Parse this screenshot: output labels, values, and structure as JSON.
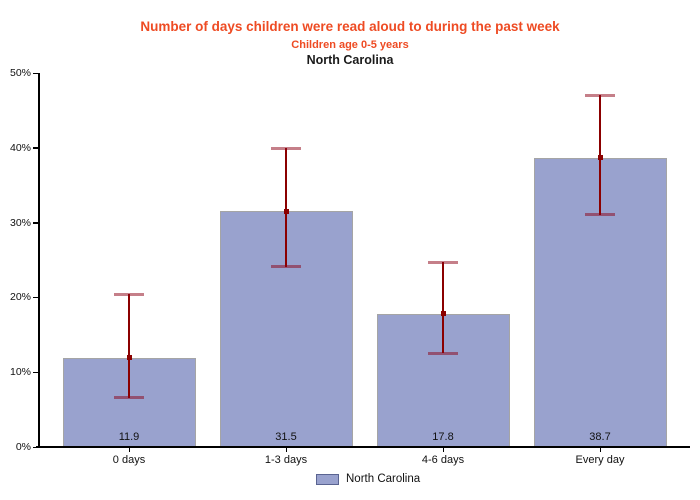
{
  "header": {
    "title": "Number of days children were read aloud to during the past week",
    "subtitle": "Children age 0-5 years",
    "region": "North Carolina"
  },
  "legend": {
    "label": "North Carolina",
    "swatch_icon": "legend-color-swatch"
  },
  "colors": {
    "accent_title": "#ee4b23",
    "bar_fill": "#99a2ce",
    "bar_border": "#a5a5a5",
    "error_line": "#8b0000",
    "error_cap": "rgba(139,0,20,0.5)",
    "legend_border": "#5a6491",
    "axis": "#000000"
  },
  "chart_data": {
    "type": "bar",
    "title": "Number of days children were read aloud to during the past week",
    "subtitle": "Children age 0-5 years",
    "region_label": "North Carolina",
    "categories": [
      "0 days",
      "1-3 days",
      "4-6 days",
      "Every day"
    ],
    "series": [
      {
        "name": "North Carolina",
        "values": [
          11.9,
          31.5,
          17.8,
          38.7
        ],
        "value_labels": [
          "11.9",
          "31.5",
          "17.8",
          "38.7"
        ],
        "ci_low": [
          6.5,
          24.0,
          12.5,
          31.0
        ],
        "ci_high": [
          20.4,
          40.0,
          24.7,
          47.0
        ]
      }
    ],
    "xlabel": "",
    "ylabel": "",
    "ylim": [
      0,
      50
    ],
    "yticks": [
      0,
      10,
      20,
      30,
      40,
      50
    ],
    "ytick_labels": [
      "0%",
      "10%",
      "20%",
      "30%",
      "40%",
      "50%"
    ],
    "grid": false,
    "error_bars": true,
    "legend_position": "bottom-center"
  }
}
